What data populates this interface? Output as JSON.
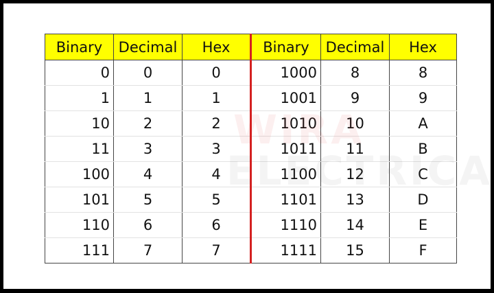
{
  "watermark": {
    "line1": "WIRA",
    "line2": "ELECTRICAL"
  },
  "columns": [
    "Binary",
    "Decimal",
    "Hex",
    "Binary",
    "Decimal",
    "Hex"
  ],
  "rows": [
    [
      "0",
      "0",
      "0",
      "1000",
      "8",
      "8"
    ],
    [
      "1",
      "1",
      "1",
      "1001",
      "9",
      "9"
    ],
    [
      "10",
      "2",
      "2",
      "1010",
      "10",
      "A"
    ],
    [
      "11",
      "3",
      "3",
      "1011",
      "11",
      "B"
    ],
    [
      "100",
      "4",
      "4",
      "1100",
      "12",
      "C"
    ],
    [
      "101",
      "5",
      "5",
      "1101",
      "13",
      "D"
    ],
    [
      "110",
      "6",
      "6",
      "1110",
      "14",
      "E"
    ],
    [
      "111",
      "7",
      "7",
      "1111",
      "15",
      "F"
    ]
  ],
  "colors": {
    "header": "#ffff00",
    "divider": "#d42020"
  }
}
